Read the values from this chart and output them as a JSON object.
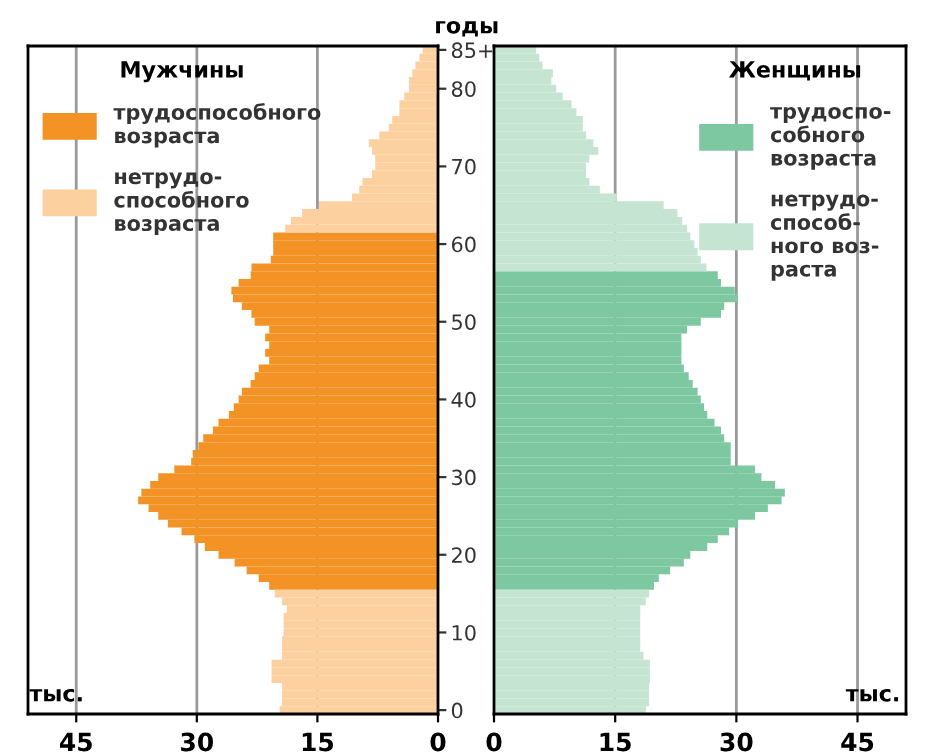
{
  "chart_data": [
    {
      "type": "bar",
      "orientation": "horizontal",
      "legend": "top left",
      "legend_title": "Мужчины",
      "ylabel": "годы",
      "xlabel": "тыс.",
      "grid": "x",
      "categories": [
        "85+",
        null,
        null,
        null,
        null,
        "80",
        null,
        null,
        null,
        null,
        null,
        null,
        null,
        null,
        null,
        "70",
        null,
        null,
        null,
        null,
        null,
        null,
        null,
        null,
        null,
        "60",
        null,
        null,
        null,
        null,
        null,
        null,
        null,
        null,
        null,
        "50",
        null,
        null,
        null,
        null,
        null,
        null,
        null,
        null,
        null,
        "40",
        null,
        null,
        null,
        null,
        null,
        null,
        null,
        null,
        null,
        "30",
        null,
        null,
        null,
        null,
        null,
        null,
        null,
        null,
        null,
        "20",
        null,
        null,
        null,
        null,
        null,
        null,
        null,
        null,
        null,
        "10",
        null,
        null,
        null,
        null,
        null,
        null,
        null,
        null,
        null,
        "0"
      ],
      "xlim": [
        51,
        0
      ],
      "xticks": [
        45,
        30,
        15,
        0
      ],
      "series": [
        {
          "name": "трудоспособного\nвозраста",
          "color": "#f39325",
          "values": [
            null,
            null,
            null,
            null,
            null,
            null,
            null,
            null,
            null,
            null,
            null,
            null,
            null,
            null,
            null,
            null,
            null,
            null,
            null,
            null,
            null,
            null,
            null,
            null,
            20.5,
            20.5,
            20.5,
            20.8,
            23.2,
            23.3,
            24.8,
            25.7,
            25.5,
            24.4,
            23.2,
            22.8,
            21,
            21.5,
            21,
            21.5,
            21,
            22.3,
            22.8,
            23.3,
            24.4,
            24.8,
            25.4,
            26,
            27.3,
            28,
            29.2,
            29.8,
            30.5,
            30.7,
            32.8,
            34.8,
            35.8,
            36.9,
            37.3,
            36,
            34.8,
            33.6,
            31.9,
            30.3,
            29,
            27.3,
            25.3,
            23.8,
            22.3,
            21,
            null,
            null,
            null,
            null,
            null,
            null,
            null,
            null,
            null,
            null,
            null,
            null,
            null,
            null,
            null,
            null
          ]
        },
        {
          "name": "нетрудо-\nспособного\nвозраста",
          "color": "#fdd0a0",
          "values": [
            1.9,
            2.3,
            2.8,
            3.2,
            3.6,
            3.6,
            4.2,
            4.8,
            4.8,
            5.7,
            6.1,
            7.3,
            8.6,
            8.2,
            7.8,
            7.8,
            8.2,
            9.4,
            9.8,
            10.7,
            14.8,
            16.9,
            18.3,
            19,
            null,
            null,
            null,
            null,
            null,
            null,
            null,
            null,
            null,
            null,
            null,
            null,
            null,
            null,
            null,
            null,
            null,
            null,
            null,
            null,
            null,
            null,
            null,
            null,
            null,
            null,
            null,
            null,
            null,
            null,
            null,
            null,
            null,
            null,
            null,
            null,
            null,
            null,
            null,
            null,
            null,
            null,
            null,
            null,
            null,
            null,
            20.3,
            19.4,
            18.8,
            19.2,
            19.2,
            19.2,
            19.4,
            19.4,
            19.4,
            20.7,
            20.7,
            20.7,
            19.4,
            19.4,
            19.4,
            19.7
          ]
        }
      ]
    },
    {
      "type": "bar",
      "orientation": "horizontal",
      "legend": "top right",
      "legend_title": "Женщины",
      "xlabel": "тыс.",
      "grid": "x",
      "categories": [
        null,
        null,
        null,
        null,
        null,
        null,
        null,
        null,
        null,
        null,
        null,
        null,
        null,
        null,
        null,
        null,
        null,
        null,
        null,
        null,
        null,
        null,
        null,
        null,
        null,
        null,
        null,
        null,
        null,
        null,
        null,
        null,
        null,
        null,
        null,
        null,
        null,
        null,
        null,
        null,
        null,
        null,
        null,
        null,
        null,
        null,
        null,
        null,
        null,
        null,
        null,
        null,
        null,
        null,
        null,
        null,
        null,
        null,
        null,
        null,
        null,
        null,
        null,
        null,
        null,
        null,
        null,
        null,
        null,
        null,
        null,
        null,
        null,
        null,
        null,
        null,
        null,
        null,
        null,
        null,
        null,
        null,
        null,
        null,
        null,
        null
      ],
      "xlim": [
        0,
        51
      ],
      "xticks": [
        0,
        15,
        30,
        45
      ],
      "series": [
        {
          "name": "трудоспо-\nсобного\nвозраста",
          "color": "#7dc8a0",
          "values": [
            null,
            null,
            null,
            null,
            null,
            null,
            null,
            null,
            null,
            null,
            null,
            null,
            null,
            null,
            null,
            null,
            null,
            null,
            null,
            null,
            null,
            null,
            null,
            null,
            null,
            null,
            null,
            null,
            null,
            27.7,
            28.1,
            29.8,
            30.2,
            28.5,
            28.1,
            25.6,
            23.9,
            23.2,
            23.2,
            23.2,
            23.2,
            23.5,
            24.1,
            24.6,
            25.2,
            25.6,
            26,
            26.4,
            27.3,
            28.1,
            28.5,
            29.3,
            29.3,
            29.3,
            32.3,
            33.1,
            34.8,
            36,
            35.6,
            33.9,
            32.3,
            30.2,
            29.1,
            27.7,
            26.4,
            24.3,
            23.5,
            21.8,
            20.4,
            19.8,
            null,
            null,
            null,
            null,
            null,
            null,
            null,
            null,
            null,
            null,
            null,
            null,
            null,
            null,
            null,
            null
          ]
        },
        {
          "name": "нетрудо-\nспособ-\nного воз-\nраста",
          "color": "#c5e5d2",
          "values": [
            5.2,
            5.6,
            6,
            7.3,
            7.1,
            7.7,
            8.5,
            9.6,
            10.2,
            11,
            11,
            11.4,
            12.3,
            12.9,
            11.8,
            11.4,
            11.4,
            11.8,
            13.1,
            15.2,
            21,
            22.7,
            23.3,
            23.9,
            24.3,
            24.8,
            25.2,
            25.6,
            26.3,
            null,
            null,
            null,
            null,
            null,
            null,
            null,
            null,
            null,
            null,
            null,
            null,
            null,
            null,
            null,
            null,
            null,
            null,
            null,
            null,
            null,
            null,
            null,
            null,
            null,
            null,
            null,
            null,
            null,
            null,
            null,
            null,
            null,
            null,
            null,
            null,
            null,
            null,
            null,
            null,
            null,
            19.2,
            18.8,
            18.1,
            18.1,
            18.1,
            18.1,
            18.1,
            18.1,
            18.5,
            19.3,
            19.3,
            19.3,
            19.2,
            19.2,
            19.2,
            18.8
          ]
        }
      ]
    }
  ]
}
